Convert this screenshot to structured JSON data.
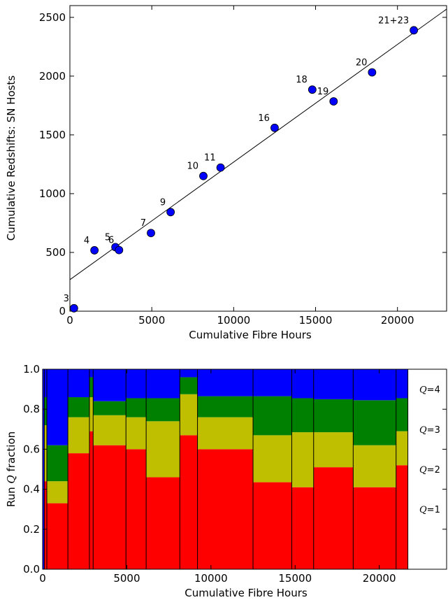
{
  "chart_data": [
    {
      "type": "scatter",
      "title": "",
      "xlabel": "Cumulative Fibre Hours",
      "ylabel": "Cumulative Redshifts: SN Hosts",
      "xlim": [
        0,
        23000
      ],
      "ylim": [
        0,
        2600
      ],
      "xticks": [
        0,
        5000,
        10000,
        15000,
        20000
      ],
      "yticks": [
        0,
        500,
        1000,
        1500,
        2000,
        2500
      ],
      "grid": false,
      "marker_color": "#0000ff",
      "fit_line": {
        "x": [
          0,
          23000
        ],
        "y": [
          268,
          2570
        ]
      },
      "points": [
        {
          "label": "3",
          "x": 250,
          "y": 25
        },
        {
          "label": "4",
          "x": 1500,
          "y": 518
        },
        {
          "label": "5",
          "x": 2780,
          "y": 545
        },
        {
          "label": "6",
          "x": 3000,
          "y": 520
        },
        {
          "label": "7",
          "x": 4950,
          "y": 665
        },
        {
          "label": "9",
          "x": 6150,
          "y": 843
        },
        {
          "label": "10",
          "x": 8150,
          "y": 1150
        },
        {
          "label": "11",
          "x": 9200,
          "y": 1222
        },
        {
          "label": "16",
          "x": 12500,
          "y": 1560
        },
        {
          "label": "18",
          "x": 14800,
          "y": 1885
        },
        {
          "label": "19",
          "x": 16100,
          "y": 1785
        },
        {
          "label": "20",
          "x": 18450,
          "y": 2032
        },
        {
          "label": "21+23",
          "x": 21000,
          "y": 2390
        }
      ]
    },
    {
      "type": "bar",
      "stacked": true,
      "title": "",
      "xlabel": "Cumulative Fibre Hours",
      "ylabel": "Run Q fraction",
      "ylabel_parts": {
        "before": "Run ",
        "italic": "Q",
        "after": " fraction"
      },
      "xlim": [
        0,
        24000
      ],
      "ylim": [
        0,
        1
      ],
      "xticks": [
        0,
        5000,
        10000,
        15000,
        20000
      ],
      "yticks": [
        "0.0",
        "0.2",
        "0.4",
        "0.6",
        "0.8",
        "1.0"
      ],
      "legend_position": "right",
      "colors": {
        "Q=1": "#ff0000",
        "Q=2": "#bfbf00",
        "Q=3": "#008000",
        "Q=4": "#0000ff"
      },
      "series_names": [
        "Q=1",
        "Q=2",
        "Q=3",
        "Q=4"
      ],
      "legend": [
        {
          "text": "Q=4",
          "var": "Q",
          "val": "=4",
          "color": "#0000ff",
          "level": 0.9
        },
        {
          "text": "Q=3",
          "var": "Q",
          "val": "=3",
          "color": "#008000",
          "level": 0.7
        },
        {
          "text": "Q=2",
          "var": "Q",
          "val": "=2",
          "color": "#bfbf00",
          "level": 0.5
        },
        {
          "text": "Q=1",
          "var": "Q",
          "val": "=1",
          "color": "#ff0000",
          "level": 0.3
        }
      ],
      "runs": [
        {
          "x0": 0,
          "x1": 100,
          "q1": 0.0,
          "q2": 0.0,
          "q3": 0.0
        },
        {
          "x0": 100,
          "x1": 250,
          "q1": 0.44,
          "q2": 0.72,
          "q3": 0.86
        },
        {
          "x0": 250,
          "x1": 1500,
          "q1": 0.33,
          "q2": 0.44,
          "q3": 0.62
        },
        {
          "x0": 1500,
          "x1": 2780,
          "q1": 0.58,
          "q2": 0.76,
          "q3": 0.86
        },
        {
          "x0": 2780,
          "x1": 3000,
          "q1": 0.69,
          "q2": 0.86,
          "q3": 0.96
        },
        {
          "x0": 3000,
          "x1": 4950,
          "q1": 0.62,
          "q2": 0.77,
          "q3": 0.84
        },
        {
          "x0": 4950,
          "x1": 6150,
          "q1": 0.6,
          "q2": 0.76,
          "q3": 0.855
        },
        {
          "x0": 6150,
          "x1": 8150,
          "q1": 0.46,
          "q2": 0.74,
          "q3": 0.855
        },
        {
          "x0": 8150,
          "x1": 9200,
          "q1": 0.67,
          "q2": 0.875,
          "q3": 0.96
        },
        {
          "x0": 9200,
          "x1": 12500,
          "q1": 0.6,
          "q2": 0.76,
          "q3": 0.865
        },
        {
          "x0": 12500,
          "x1": 14800,
          "q1": 0.435,
          "q2": 0.67,
          "q3": 0.865
        },
        {
          "x0": 14800,
          "x1": 16100,
          "q1": 0.41,
          "q2": 0.685,
          "q3": 0.855
        },
        {
          "x0": 16100,
          "x1": 18450,
          "q1": 0.51,
          "q2": 0.685,
          "q3": 0.85
        },
        {
          "x0": 18450,
          "x1": 21000,
          "q1": 0.41,
          "q2": 0.62,
          "q3": 0.845
        },
        {
          "x0": 21000,
          "x1": 21700,
          "q1": 0.52,
          "q2": 0.69,
          "q3": 0.855
        }
      ]
    }
  ]
}
